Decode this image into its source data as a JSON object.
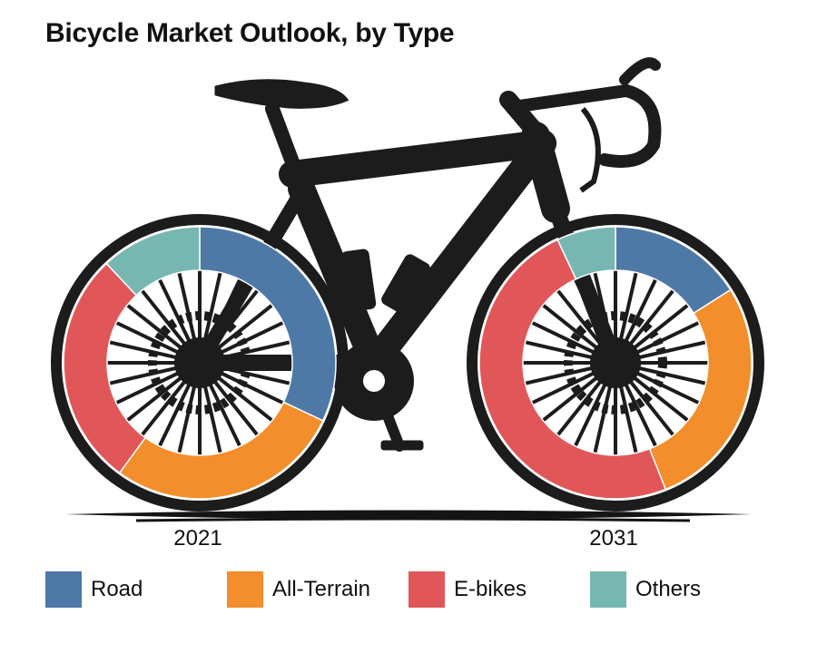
{
  "chart_data": {
    "type": "pie",
    "title": "Bicycle Market Outlook, by Type",
    "categories": [
      "Road",
      "All-Terrain",
      "E-bikes",
      "Others"
    ],
    "colors": [
      "#4e79a7",
      "#f28e2b",
      "#e15759",
      "#76b7b2"
    ],
    "series": [
      {
        "name": "2021",
        "values": [
          32,
          28,
          28,
          12
        ]
      },
      {
        "name": "2031",
        "values": [
          16,
          28,
          49,
          7
        ]
      }
    ],
    "style": "donut drawn as bicycle wheels",
    "legend_position": "bottom"
  }
}
